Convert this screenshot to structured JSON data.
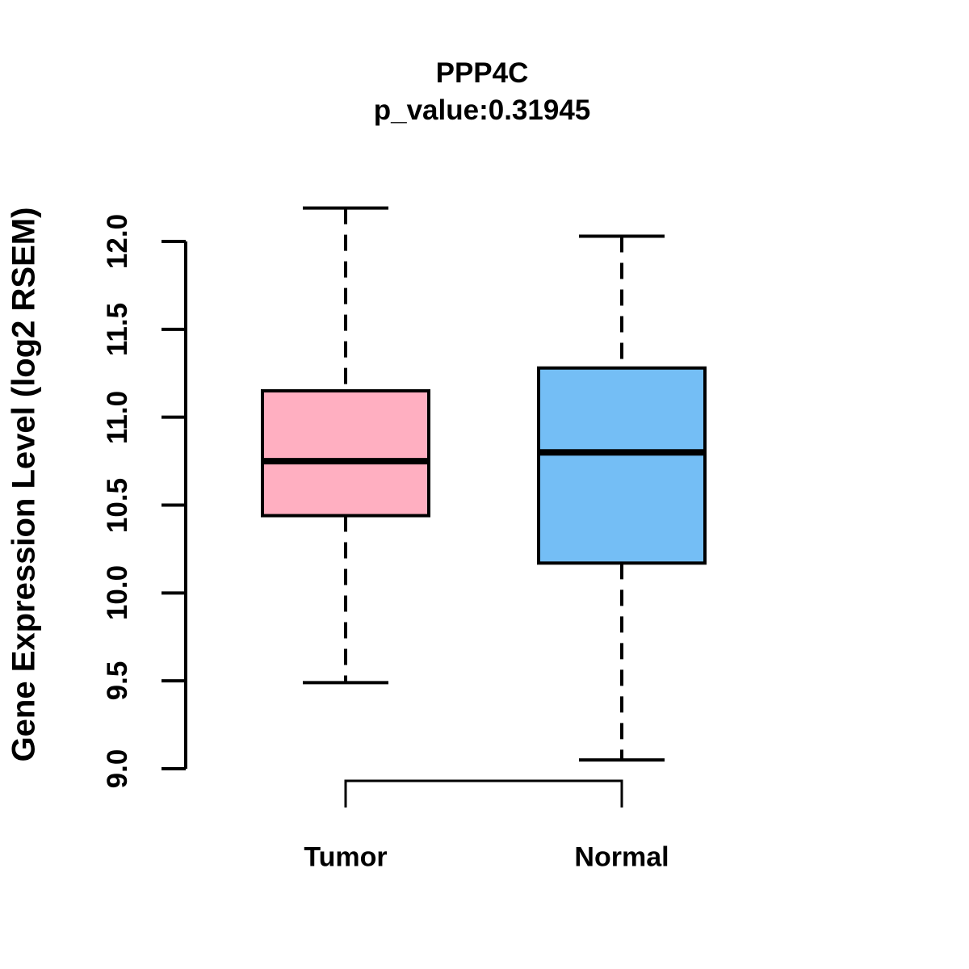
{
  "chart_data": {
    "type": "boxplot",
    "title": "PPP4C",
    "subtitle": "p_value:0.31945",
    "ylabel": "Gene Expression Level (log2 RSEM)",
    "xlabel": "",
    "ylim": [
      9.0,
      12.0
    ],
    "yticks": [
      "9.0",
      "9.5",
      "10.0",
      "10.5",
      "11.0",
      "11.5",
      "12.0"
    ],
    "ytick_values": [
      9.0,
      9.5,
      10.0,
      10.5,
      11.0,
      11.5,
      12.0
    ],
    "grid": false,
    "legend": "none",
    "whisker_style": "dashed",
    "groups": [
      {
        "label": "Tumor",
        "color": "#FFAFC1",
        "whisker_low": 9.49,
        "q1": 10.44,
        "median": 10.75,
        "q3": 11.15,
        "whisker_high": 12.19
      },
      {
        "label": "Normal",
        "color": "#74BEF5",
        "whisker_low": 9.05,
        "q1": 10.17,
        "median": 10.8,
        "q3": 11.28,
        "whisker_high": 12.03
      }
    ],
    "comparison_bracket": {
      "between": [
        "Tumor",
        "Normal"
      ]
    }
  },
  "colors": {
    "stroke": "#000000",
    "background": "#FFFFFF"
  }
}
